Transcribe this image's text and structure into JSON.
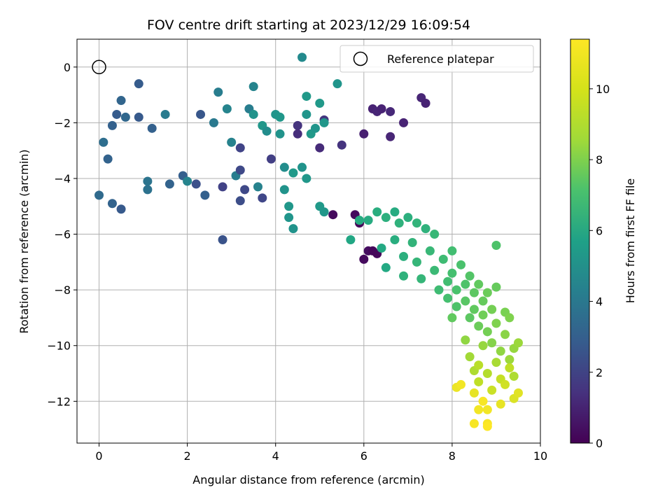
{
  "chart_data": {
    "type": "scatter",
    "title": "FOV centre drift starting at 2023/12/29 16:09:54",
    "xlabel": "Angular distance from reference (arcmin)",
    "ylabel": "Rotation from reference (arcmin)",
    "xlim": [
      -0.5,
      10
    ],
    "ylim": [
      -13.5,
      1
    ],
    "xticks": [
      0,
      2,
      4,
      6,
      8,
      10
    ],
    "yticks": [
      0,
      -2,
      -4,
      -6,
      -8,
      -10,
      -12
    ],
    "xtick_labels": [
      "0",
      "2",
      "4",
      "6",
      "8",
      "10"
    ],
    "ytick_labels": [
      "0",
      "−2",
      "−4",
      "−6",
      "−8",
      "−10",
      "−12"
    ],
    "grid": true,
    "legend": {
      "position": "upper right",
      "label": "Reference platepar",
      "marker": "open-circle"
    },
    "reference_point": {
      "x": 0,
      "y": 0
    },
    "colorbar": {
      "label": "Hours from first FF file",
      "colormap": "viridis",
      "range": [
        0,
        11.4
      ],
      "ticks": [
        0,
        2,
        4,
        6,
        8,
        10
      ],
      "tick_labels": [
        "0",
        "2",
        "4",
        "6",
        "8",
        "10"
      ]
    },
    "points": [
      {
        "x": 0.0,
        "y": -4.6,
        "c": 3.9
      },
      {
        "x": 0.1,
        "y": -2.7,
        "c": 4.1
      },
      {
        "x": 0.2,
        "y": -3.3,
        "c": 3.6
      },
      {
        "x": 0.3,
        "y": -4.9,
        "c": 3.6
      },
      {
        "x": 0.5,
        "y": -5.1,
        "c": 3.2
      },
      {
        "x": 0.3,
        "y": -2.1,
        "c": 3.5
      },
      {
        "x": 0.4,
        "y": -1.7,
        "c": 3.3
      },
      {
        "x": 0.5,
        "y": -1.2,
        "c": 3.7
      },
      {
        "x": 0.6,
        "y": -1.8,
        "c": 3.8
      },
      {
        "x": 0.9,
        "y": -0.6,
        "c": 3.3
      },
      {
        "x": 0.9,
        "y": -1.8,
        "c": 3.2
      },
      {
        "x": 1.1,
        "y": -4.4,
        "c": 4.3
      },
      {
        "x": 1.1,
        "y": -4.1,
        "c": 4.4
      },
      {
        "x": 1.2,
        "y": -2.2,
        "c": 3.5
      },
      {
        "x": 1.5,
        "y": -1.7,
        "c": 4.7
      },
      {
        "x": 1.6,
        "y": -4.2,
        "c": 3.6
      },
      {
        "x": 1.9,
        "y": -3.9,
        "c": 3.4
      },
      {
        "x": 2.0,
        "y": -4.1,
        "c": 5.1
      },
      {
        "x": 2.2,
        "y": -4.2,
        "c": 2.8
      },
      {
        "x": 2.3,
        "y": -1.7,
        "c": 3.1
      },
      {
        "x": 2.4,
        "y": -4.6,
        "c": 3.5
      },
      {
        "x": 2.6,
        "y": -2.0,
        "c": 4.6
      },
      {
        "x": 2.7,
        "y": -0.9,
        "c": 4.8
      },
      {
        "x": 2.8,
        "y": -6.2,
        "c": 2.9
      },
      {
        "x": 2.8,
        "y": -4.3,
        "c": 2.2
      },
      {
        "x": 2.9,
        "y": -1.5,
        "c": 5.1
      },
      {
        "x": 3.0,
        "y": -2.7,
        "c": 5.0
      },
      {
        "x": 3.1,
        "y": -3.9,
        "c": 4.8
      },
      {
        "x": 3.2,
        "y": -2.9,
        "c": 2.3
      },
      {
        "x": 3.2,
        "y": -3.7,
        "c": 2.5
      },
      {
        "x": 3.3,
        "y": -4.4,
        "c": 2.5
      },
      {
        "x": 3.2,
        "y": -4.8,
        "c": 2.7
      },
      {
        "x": 3.4,
        "y": -1.5,
        "c": 4.8
      },
      {
        "x": 3.5,
        "y": -0.7,
        "c": 5.1
      },
      {
        "x": 3.5,
        "y": -1.7,
        "c": 5.8
      },
      {
        "x": 3.6,
        "y": -4.3,
        "c": 5.0
      },
      {
        "x": 3.7,
        "y": -4.7,
        "c": 2.4
      },
      {
        "x": 3.7,
        "y": -2.1,
        "c": 6.0
      },
      {
        "x": 3.8,
        "y": -2.3,
        "c": 5.5
      },
      {
        "x": 3.9,
        "y": -3.3,
        "c": 2.1
      },
      {
        "x": 4.0,
        "y": -1.7,
        "c": 5.9
      },
      {
        "x": 4.1,
        "y": -1.8,
        "c": 6.0
      },
      {
        "x": 4.1,
        "y": -2.4,
        "c": 5.8
      },
      {
        "x": 4.2,
        "y": -3.6,
        "c": 5.5
      },
      {
        "x": 4.2,
        "y": -4.4,
        "c": 5.8
      },
      {
        "x": 4.3,
        "y": -5.0,
        "c": 6.0
      },
      {
        "x": 4.3,
        "y": -5.4,
        "c": 5.9
      },
      {
        "x": 4.4,
        "y": -3.8,
        "c": 6.1
      },
      {
        "x": 4.5,
        "y": -2.1,
        "c": 1.7
      },
      {
        "x": 4.5,
        "y": -2.4,
        "c": 1.5
      },
      {
        "x": 4.6,
        "y": 0.35,
        "c": 5.4
      },
      {
        "x": 4.6,
        "y": -3.6,
        "c": 5.8
      },
      {
        "x": 4.7,
        "y": -1.05,
        "c": 6.1
      },
      {
        "x": 4.7,
        "y": -1.7,
        "c": 5.9
      },
      {
        "x": 4.8,
        "y": -2.4,
        "c": 6.1
      },
      {
        "x": 4.9,
        "y": -2.2,
        "c": 5.9
      },
      {
        "x": 5.0,
        "y": -1.3,
        "c": 6.1
      },
      {
        "x": 5.0,
        "y": -5.0,
        "c": 6.1
      },
      {
        "x": 5.1,
        "y": -5.2,
        "c": 6.0
      },
      {
        "x": 5.0,
        "y": -2.9,
        "c": 1.4
      },
      {
        "x": 5.1,
        "y": -1.9,
        "c": 1.8
      },
      {
        "x": 5.1,
        "y": -2.0,
        "c": 6.0
      },
      {
        "x": 5.4,
        "y": -0.6,
        "c": 5.9
      },
      {
        "x": 5.5,
        "y": -2.8,
        "c": 1.7
      },
      {
        "x": 4.4,
        "y": -5.8,
        "c": 5.8
      },
      {
        "x": 4.7,
        "y": -4.0,
        "c": 6.0
      },
      {
        "x": 5.3,
        "y": -5.3,
        "c": 0.3
      },
      {
        "x": 5.7,
        "y": -6.2,
        "c": 6.8
      },
      {
        "x": 5.8,
        "y": -5.3,
        "c": 0.3
      },
      {
        "x": 5.9,
        "y": -5.6,
        "c": 0.2
      },
      {
        "x": 5.9,
        "y": -5.5,
        "c": 7.0
      },
      {
        "x": 6.0,
        "y": -2.4,
        "c": 1.0
      },
      {
        "x": 6.0,
        "y": -6.9,
        "c": 0.3
      },
      {
        "x": 6.1,
        "y": -6.6,
        "c": 0.4
      },
      {
        "x": 6.2,
        "y": -6.6,
        "c": 0.2
      },
      {
        "x": 6.3,
        "y": -6.7,
        "c": 0.2
      },
      {
        "x": 6.2,
        "y": -1.5,
        "c": 1.1
      },
      {
        "x": 6.3,
        "y": -1.6,
        "c": 1.2
      },
      {
        "x": 6.4,
        "y": -1.5,
        "c": 1.1
      },
      {
        "x": 6.6,
        "y": -1.6,
        "c": 1.3
      },
      {
        "x": 6.6,
        "y": -2.5,
        "c": 1.2
      },
      {
        "x": 6.9,
        "y": -2.0,
        "c": 1.1
      },
      {
        "x": 7.3,
        "y": -1.1,
        "c": 1.2
      },
      {
        "x": 7.4,
        "y": -1.3,
        "c": 1.1
      },
      {
        "x": 6.1,
        "y": -5.5,
        "c": 7.0
      },
      {
        "x": 6.3,
        "y": -5.2,
        "c": 7.1
      },
      {
        "x": 6.5,
        "y": -5.4,
        "c": 7.2
      },
      {
        "x": 6.7,
        "y": -5.2,
        "c": 7.0
      },
      {
        "x": 6.8,
        "y": -5.6,
        "c": 7.3
      },
      {
        "x": 7.0,
        "y": -5.4,
        "c": 7.2
      },
      {
        "x": 7.2,
        "y": -5.6,
        "c": 7.4
      },
      {
        "x": 7.4,
        "y": -5.8,
        "c": 7.3
      },
      {
        "x": 7.6,
        "y": -6.0,
        "c": 7.6
      },
      {
        "x": 6.4,
        "y": -6.5,
        "c": 6.9
      },
      {
        "x": 6.5,
        "y": -7.2,
        "c": 6.9
      },
      {
        "x": 6.7,
        "y": -6.2,
        "c": 7.1
      },
      {
        "x": 6.9,
        "y": -6.8,
        "c": 7.2
      },
      {
        "x": 6.9,
        "y": -7.5,
        "c": 7.3
      },
      {
        "x": 7.1,
        "y": -6.3,
        "c": 7.4
      },
      {
        "x": 7.2,
        "y": -7.0,
        "c": 7.5
      },
      {
        "x": 7.3,
        "y": -7.6,
        "c": 7.5
      },
      {
        "x": 7.5,
        "y": -6.6,
        "c": 7.6
      },
      {
        "x": 7.6,
        "y": -7.3,
        "c": 7.7
      },
      {
        "x": 7.7,
        "y": -8.0,
        "c": 7.8
      },
      {
        "x": 7.8,
        "y": -6.9,
        "c": 7.8
      },
      {
        "x": 7.9,
        "y": -7.7,
        "c": 7.9
      },
      {
        "x": 7.9,
        "y": -8.3,
        "c": 8.0
      },
      {
        "x": 8.0,
        "y": -6.6,
        "c": 7.9
      },
      {
        "x": 8.0,
        "y": -7.4,
        "c": 8.0
      },
      {
        "x": 8.1,
        "y": -8.0,
        "c": 8.1
      },
      {
        "x": 8.1,
        "y": -8.6,
        "c": 8.2
      },
      {
        "x": 8.2,
        "y": -7.1,
        "c": 8.1
      },
      {
        "x": 8.3,
        "y": -7.8,
        "c": 8.2
      },
      {
        "x": 8.3,
        "y": -8.4,
        "c": 8.4
      },
      {
        "x": 8.4,
        "y": -7.5,
        "c": 8.3
      },
      {
        "x": 8.4,
        "y": -9.0,
        "c": 8.5
      },
      {
        "x": 8.5,
        "y": -8.1,
        "c": 8.5
      },
      {
        "x": 8.5,
        "y": -8.7,
        "c": 8.6
      },
      {
        "x": 8.6,
        "y": -7.8,
        "c": 8.6
      },
      {
        "x": 8.6,
        "y": -9.3,
        "c": 8.8
      },
      {
        "x": 8.7,
        "y": -8.4,
        "c": 8.7
      },
      {
        "x": 8.7,
        "y": -8.9,
        "c": 8.9
      },
      {
        "x": 8.8,
        "y": -8.1,
        "c": 8.8
      },
      {
        "x": 8.8,
        "y": -9.5,
        "c": 9.0
      },
      {
        "x": 8.9,
        "y": -8.7,
        "c": 9.0
      },
      {
        "x": 8.9,
        "y": -9.9,
        "c": 9.3
      },
      {
        "x": 9.0,
        "y": -7.9,
        "c": 8.7
      },
      {
        "x": 9.0,
        "y": -9.2,
        "c": 9.2
      },
      {
        "x": 9.1,
        "y": -10.2,
        "c": 9.5
      },
      {
        "x": 9.2,
        "y": -8.8,
        "c": 9.1
      },
      {
        "x": 9.2,
        "y": -9.6,
        "c": 9.4
      },
      {
        "x": 9.3,
        "y": -10.5,
        "c": 9.7
      },
      {
        "x": 9.3,
        "y": -9.0,
        "c": 9.2
      },
      {
        "x": 9.4,
        "y": -10.1,
        "c": 9.6
      },
      {
        "x": 9.4,
        "y": -11.1,
        "c": 10.0
      },
      {
        "x": 9.5,
        "y": -9.9,
        "c": 9.7
      },
      {
        "x": 9.0,
        "y": -6.4,
        "c": 8.2
      },
      {
        "x": 8.0,
        "y": -9.0,
        "c": 8.6
      },
      {
        "x": 8.3,
        "y": -9.8,
        "c": 9.5
      },
      {
        "x": 8.4,
        "y": -10.4,
        "c": 9.8
      },
      {
        "x": 8.5,
        "y": -10.9,
        "c": 10.0
      },
      {
        "x": 8.6,
        "y": -11.3,
        "c": 10.3
      },
      {
        "x": 8.7,
        "y": -10.0,
        "c": 9.6
      },
      {
        "x": 8.8,
        "y": -11.0,
        "c": 10.1
      },
      {
        "x": 8.9,
        "y": -11.6,
        "c": 10.5
      },
      {
        "x": 9.0,
        "y": -10.6,
        "c": 9.9
      },
      {
        "x": 9.1,
        "y": -11.2,
        "c": 10.4
      },
      {
        "x": 9.2,
        "y": -11.4,
        "c": 10.6
      },
      {
        "x": 9.4,
        "y": -11.9,
        "c": 10.8
      },
      {
        "x": 9.5,
        "y": -11.7,
        "c": 10.9
      },
      {
        "x": 8.1,
        "y": -11.5,
        "c": 11.1
      },
      {
        "x": 8.2,
        "y": -11.4,
        "c": 11.2
      },
      {
        "x": 8.5,
        "y": -11.7,
        "c": 11.0
      },
      {
        "x": 8.6,
        "y": -12.3,
        "c": 11.2
      },
      {
        "x": 8.7,
        "y": -12.0,
        "c": 11.3
      },
      {
        "x": 8.8,
        "y": -12.3,
        "c": 11.2
      },
      {
        "x": 8.5,
        "y": -12.8,
        "c": 11.3
      },
      {
        "x": 8.8,
        "y": -12.8,
        "c": 11.3
      },
      {
        "x": 8.8,
        "y": -12.9,
        "c": 11.4
      },
      {
        "x": 9.1,
        "y": -12.1,
        "c": 11.0
      },
      {
        "x": 8.6,
        "y": -10.7,
        "c": 10.2
      },
      {
        "x": 9.3,
        "y": -10.8,
        "c": 10.3
      }
    ]
  }
}
